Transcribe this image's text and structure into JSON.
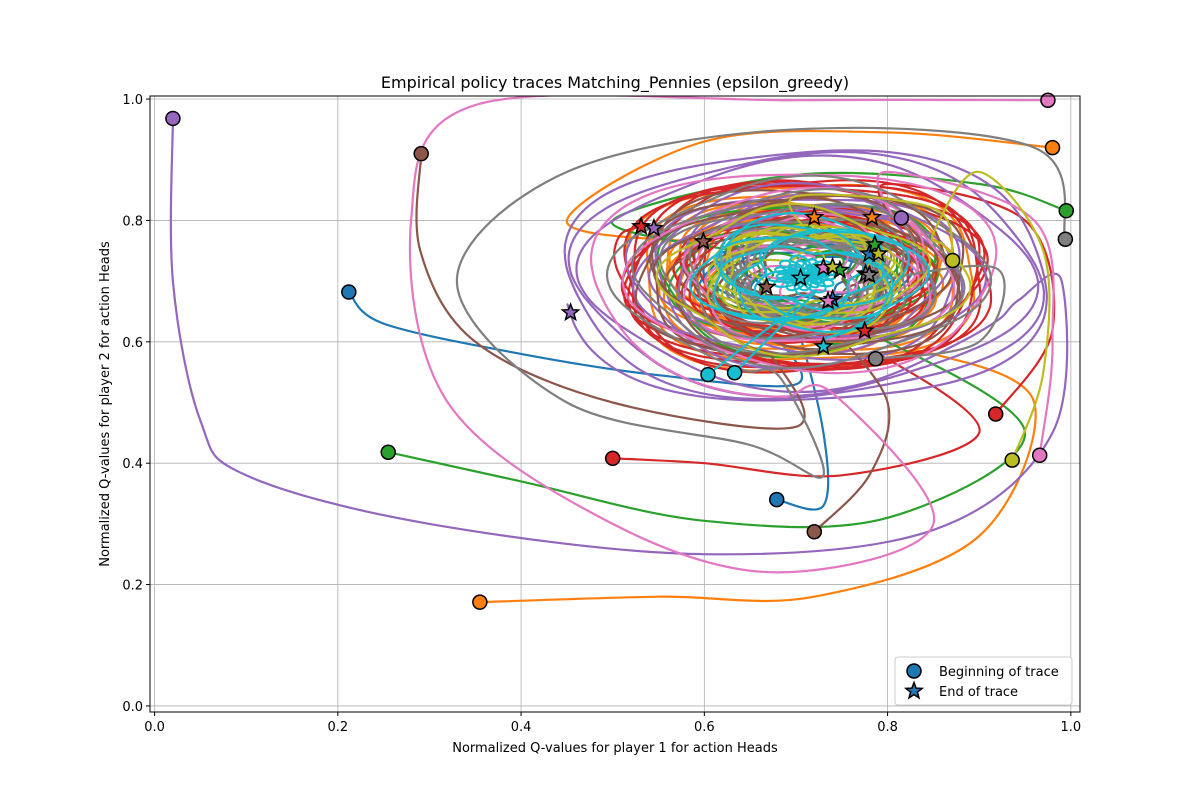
{
  "chart_data": {
    "type": "line",
    "title": "Empirical policy traces Matching_Pennies (epsilon_greedy)",
    "xlabel": "Normalized Q-values for player 1 for action Heads",
    "ylabel": "Normalized Q-values for player 2 for action Heads",
    "xlim": [
      -0.005,
      1.01
    ],
    "ylim": [
      -0.01,
      1.005
    ],
    "xticks": [
      "0.0",
      "0.2",
      "0.4",
      "0.6",
      "0.8",
      "1.0"
    ],
    "yticks": [
      "0.0",
      "0.2",
      "0.4",
      "0.6",
      "0.8",
      "1.0"
    ],
    "grid": true,
    "legend_position": "lower right",
    "legend": [
      {
        "label": "Beginning of trace",
        "marker": "circle",
        "color": "#1f77b4"
      },
      {
        "label": "End of trace",
        "marker": "star",
        "color": "#1f77b4"
      }
    ],
    "center": [
      0.71,
      0.71
    ],
    "series": [
      {
        "color": "#1f77b4",
        "start": [
          0.212,
          0.682
        ],
        "waypoints": [
          [
            0.25,
            0.63
          ],
          [
            0.4,
            0.58
          ],
          [
            0.55,
            0.545
          ],
          [
            0.7,
            0.53
          ]
        ],
        "end": [
          0.78,
          0.745
        ],
        "radius": 0.12
      },
      {
        "color": "#1f77b4",
        "start": [
          0.679,
          0.34
        ],
        "waypoints": [
          [
            0.73,
            0.33
          ],
          [
            0.73,
            0.45
          ]
        ],
        "end": [
          0.74,
          0.67
        ],
        "radius": 0.08
      },
      {
        "color": "#ff7f0e",
        "start": [
          0.355,
          0.171
        ],
        "waypoints": [
          [
            0.55,
            0.18
          ],
          [
            0.72,
            0.18
          ],
          [
            0.9,
            0.28
          ],
          [
            0.96,
            0.5
          ]
        ],
        "end": [
          0.72,
          0.805
        ],
        "radius": 0.2
      },
      {
        "color": "#ff7f0e",
        "start": [
          0.98,
          0.92
        ],
        "waypoints": [
          [
            0.8,
            0.945
          ],
          [
            0.6,
            0.93
          ],
          [
            0.45,
            0.8
          ]
        ],
        "end": [
          0.783,
          0.805
        ],
        "radius": 0.15
      },
      {
        "color": "#2ca02c",
        "start": [
          0.255,
          0.418
        ],
        "waypoints": [
          [
            0.4,
            0.37
          ],
          [
            0.6,
            0.305
          ],
          [
            0.8,
            0.31
          ],
          [
            0.95,
            0.45
          ]
        ],
        "end": [
          0.786,
          0.76
        ],
        "radius": 0.16
      },
      {
        "color": "#2ca02c",
        "start": [
          0.995,
          0.816
        ],
        "waypoints": [
          [
            0.9,
            0.86
          ],
          [
            0.7,
            0.875
          ],
          [
            0.5,
            0.8
          ]
        ],
        "end": [
          0.748,
          0.718
        ],
        "radius": 0.1
      },
      {
        "color": "#d62728",
        "start": [
          0.5,
          0.408
        ],
        "waypoints": [
          [
            0.6,
            0.4
          ],
          [
            0.75,
            0.38
          ],
          [
            0.9,
            0.45
          ]
        ],
        "end": [
          0.531,
          0.79
        ],
        "radius": 0.18
      },
      {
        "color": "#d62728",
        "start": [
          0.918,
          0.481
        ],
        "waypoints": [
          [
            0.98,
            0.62
          ],
          [
            0.95,
            0.8
          ],
          [
            0.8,
            0.86
          ]
        ],
        "end": [
          0.775,
          0.618
        ],
        "radius": 0.13
      },
      {
        "color": "#9467bd",
        "start": [
          0.02,
          0.968
        ],
        "waypoints": [
          [
            0.02,
            0.7
          ],
          [
            0.05,
            0.47
          ],
          [
            0.1,
            0.38
          ],
          [
            0.3,
            0.3
          ],
          [
            0.6,
            0.25
          ],
          [
            0.85,
            0.29
          ],
          [
            0.98,
            0.45
          ],
          [
            0.99,
            0.7
          ]
        ],
        "end": [
          0.454,
          0.648
        ],
        "radius": 0.22
      },
      {
        "color": "#9467bd",
        "start": [
          0.815,
          0.804
        ],
        "waypoints": [
          [
            0.7,
            0.82
          ],
          [
            0.6,
            0.78
          ]
        ],
        "end": [
          0.545,
          0.787
        ],
        "radius": 0.15
      },
      {
        "color": "#8c564b",
        "start": [
          0.291,
          0.91
        ],
        "waypoints": [
          [
            0.29,
            0.75
          ],
          [
            0.35,
            0.6
          ],
          [
            0.5,
            0.5
          ],
          [
            0.7,
            0.46
          ]
        ],
        "end": [
          0.599,
          0.765
        ],
        "radius": 0.18
      },
      {
        "color": "#8c564b",
        "start": [
          0.72,
          0.287
        ],
        "waypoints": [
          [
            0.78,
            0.38
          ],
          [
            0.8,
            0.5
          ]
        ],
        "end": [
          0.668,
          0.69
        ],
        "radius": 0.12
      },
      {
        "color": "#e377c2",
        "start": [
          0.975,
          0.998
        ],
        "waypoints": [
          [
            0.7,
            0.998
          ],
          [
            0.35,
            0.99
          ],
          [
            0.28,
            0.8
          ],
          [
            0.32,
            0.5
          ],
          [
            0.5,
            0.3
          ],
          [
            0.68,
            0.22
          ],
          [
            0.85,
            0.3
          ]
        ],
        "end": [
          0.735,
          0.667
        ],
        "radius": 0.24
      },
      {
        "color": "#e377c2",
        "start": [
          0.966,
          0.413
        ],
        "waypoints": [
          [
            0.98,
            0.6
          ],
          [
            0.96,
            0.8
          ],
          [
            0.8,
            0.88
          ]
        ],
        "end": [
          0.73,
          0.722
        ],
        "radius": 0.14
      },
      {
        "color": "#7f7f7f",
        "start": [
          0.994,
          0.769
        ],
        "waypoints": [
          [
            0.96,
            0.92
          ],
          [
            0.7,
            0.95
          ],
          [
            0.45,
            0.88
          ],
          [
            0.33,
            0.7
          ],
          [
            0.45,
            0.5
          ],
          [
            0.65,
            0.43
          ],
          [
            0.73,
            0.38
          ]
        ],
        "end": [
          0.776,
          0.712
        ],
        "radius": 0.2
      },
      {
        "color": "#7f7f7f",
        "start": [
          0.787,
          0.572
        ],
        "waypoints": [
          [
            0.9,
            0.6
          ],
          [
            0.92,
            0.72
          ]
        ],
        "end": [
          0.78,
          0.71
        ],
        "radius": 0.08
      },
      {
        "color": "#bcbd22",
        "start": [
          0.936,
          0.405
        ],
        "waypoints": [
          [
            0.97,
            0.55
          ],
          [
            0.97,
            0.75
          ],
          [
            0.9,
            0.88
          ]
        ],
        "end": [
          0.74,
          0.723
        ],
        "radius": 0.17
      },
      {
        "color": "#bcbd22",
        "start": [
          0.871,
          0.734
        ],
        "waypoints": [
          [
            0.85,
            0.82
          ],
          [
            0.7,
            0.84
          ]
        ],
        "end": [
          0.79,
          0.745
        ],
        "radius": 0.09
      },
      {
        "color": "#17becf",
        "start": [
          0.604,
          0.546
        ],
        "waypoints": [
          [
            0.65,
            0.6
          ],
          [
            0.7,
            0.66
          ]
        ],
        "end": [
          0.73,
          0.592
        ],
        "radius": 0.05
      },
      {
        "color": "#17becf",
        "start": [
          0.633,
          0.549
        ],
        "waypoints": [
          [
            0.68,
            0.62
          ],
          [
            0.72,
            0.68
          ]
        ],
        "end": [
          0.705,
          0.705
        ],
        "radius": 0.03
      }
    ]
  }
}
